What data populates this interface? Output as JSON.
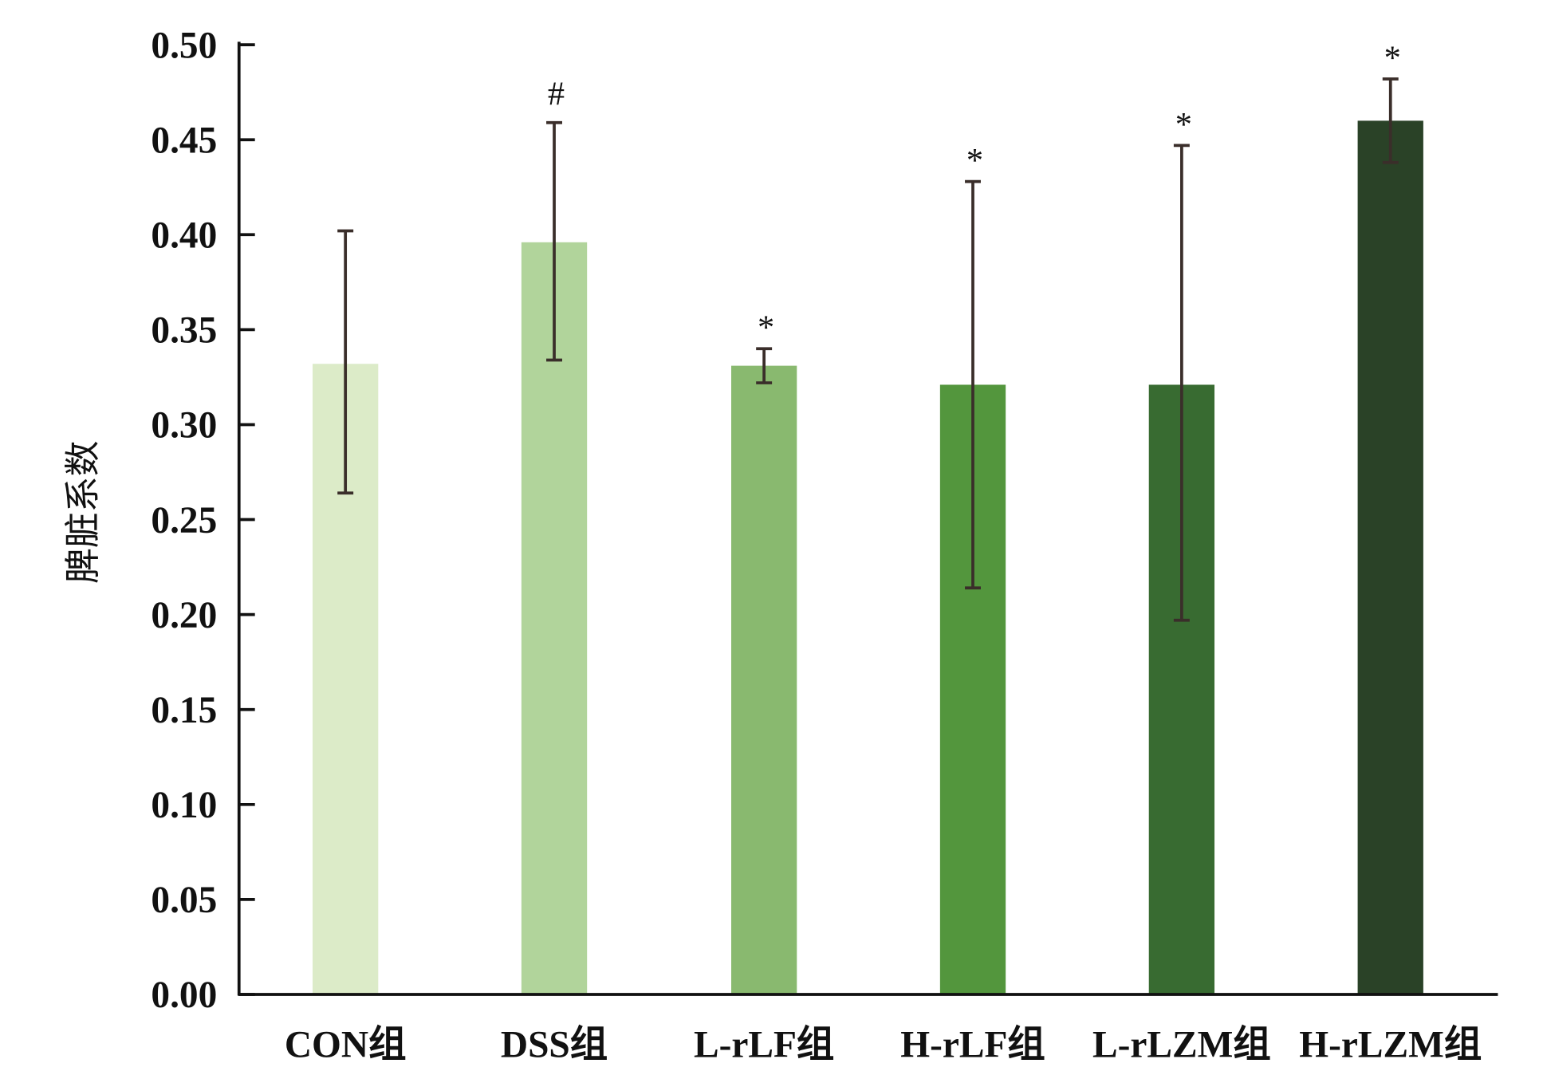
{
  "chart_data": {
    "type": "bar",
    "title": "",
    "xlabel": "",
    "ylabel": "脾脏系数",
    "ylim": [
      0,
      0.5
    ],
    "yticks": [
      "0.00",
      "0.05",
      "0.10",
      "0.15",
      "0.20",
      "0.25",
      "0.30",
      "0.35",
      "0.40",
      "0.45",
      "0.50"
    ],
    "grid": false,
    "categories": [
      "CON组",
      "DSS组",
      "L-rLF组",
      "H-rLF组",
      "L-rLZM组",
      "H-rLZM组"
    ],
    "values": [
      0.332,
      0.396,
      0.331,
      0.321,
      0.321,
      0.46
    ],
    "error_upper": [
      0.402,
      0.459,
      0.34,
      0.428,
      0.447,
      0.482
    ],
    "error_lower": [
      0.264,
      0.334,
      0.322,
      0.214,
      0.197,
      0.438
    ],
    "significance_marks": [
      "",
      "#",
      "*",
      "*",
      "*",
      "*"
    ],
    "colors": [
      "#dcebc8",
      "#b1d49b",
      "#89b96f",
      "#53963d",
      "#386b31",
      "#2a4227"
    ]
  }
}
